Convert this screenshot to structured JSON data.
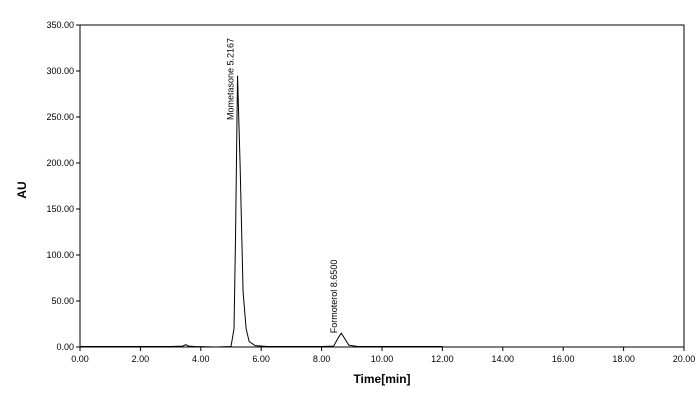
{
  "chart_data": {
    "type": "line",
    "xlabel": "Time[min]",
    "ylabel": "AU",
    "x": [
      0,
      1,
      2,
      3,
      3.4,
      3.5,
      3.6,
      3.8,
      4.5,
      5.0,
      5.1,
      5.15,
      5.2167,
      5.3,
      5.4,
      5.5,
      5.6,
      5.8,
      6.2,
      8.0,
      8.4,
      8.55,
      8.65,
      8.75,
      8.9,
      9.2,
      12
    ],
    "values": [
      0.5,
      0.5,
      0.5,
      0.5,
      1,
      2.5,
      1,
      0.5,
      0,
      0.5,
      20,
      120,
      295,
      200,
      60,
      20,
      6,
      1.5,
      0.5,
      0.5,
      1,
      10,
      15,
      10,
      2,
      0.5,
      0.5
    ],
    "color": "#000000",
    "xlim": [
      0,
      20
    ],
    "xticks": [
      {
        "value": 0,
        "label": "0.00"
      },
      {
        "value": 2,
        "label": "2.00"
      },
      {
        "value": 4,
        "label": "4.00"
      },
      {
        "value": 6,
        "label": "6.00"
      },
      {
        "value": 8,
        "label": "8.00"
      },
      {
        "value": 10,
        "label": "10.00"
      },
      {
        "value": 12,
        "label": "12.00"
      },
      {
        "value": 14,
        "label": "14.00"
      },
      {
        "value": 16,
        "label": "16.00"
      },
      {
        "value": 18,
        "label": "18.00"
      },
      {
        "value": 20,
        "label": "20.00"
      }
    ],
    "ylim": [
      0,
      350
    ],
    "yticks": [
      {
        "value": 0,
        "label": "0.00"
      },
      {
        "value": 50,
        "label": "50.00"
      },
      {
        "value": 100,
        "label": "100.00"
      },
      {
        "value": 150,
        "label": "150.00"
      },
      {
        "value": 200,
        "label": "200.00"
      },
      {
        "value": 250,
        "label": "250.00"
      },
      {
        "value": 300,
        "label": "300.00"
      },
      {
        "value": 350,
        "label": "350.00"
      }
    ],
    "grid": false,
    "annotations": [
      {
        "text": "Mometasone 5.2167",
        "x": 5.2167,
        "y": 295
      },
      {
        "text": "Formoterol 8.6500",
        "x": 8.65,
        "y": 15
      }
    ]
  }
}
